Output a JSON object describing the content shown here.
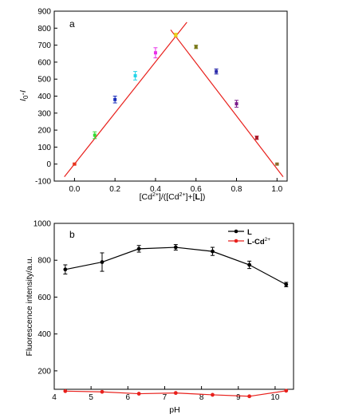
{
  "chart_data": [
    {
      "panel_label": "a",
      "type": "scatter",
      "xlabel": {
        "p1": "[Cd",
        "sup1": "2+",
        "p2": "]/([Cd",
        "sup2": "2+",
        "p3": "]+[",
        "bold": "L",
        "p4": "])"
      },
      "ylabel": {
        "main": "I",
        "sub": "0",
        "rest": "-I"
      },
      "xlim": [
        -0.1,
        1.05
      ],
      "ylim": [
        -100,
        900
      ],
      "xticks": [
        0.0,
        0.2,
        0.4,
        0.6,
        0.8,
        1.0
      ],
      "xtick_labels": [
        "0.0",
        "0.2",
        "0.4",
        "0.6",
        "0.8",
        "1.0"
      ],
      "yticks": [
        -100,
        0,
        100,
        200,
        300,
        400,
        500,
        600,
        700,
        800,
        900
      ],
      "ytick_labels": [
        "-100",
        "0",
        "100",
        "200",
        "300",
        "400",
        "500",
        "600",
        "700",
        "800",
        "900"
      ],
      "points": [
        {
          "x": 0.0,
          "y": 0,
          "err": 5,
          "color": "#e8341c"
        },
        {
          "x": 0.1,
          "y": 170,
          "err": 20,
          "color": "#33dd33"
        },
        {
          "x": 0.2,
          "y": 380,
          "err": 20,
          "color": "#1a2dbb"
        },
        {
          "x": 0.3,
          "y": 520,
          "err": 25,
          "color": "#22d4e8"
        },
        {
          "x": 0.4,
          "y": 655,
          "err": 30,
          "color": "#e82ee8"
        },
        {
          "x": 0.5,
          "y": 760,
          "err": 10,
          "color": "#e8d21a"
        },
        {
          "x": 0.6,
          "y": 690,
          "err": 10,
          "color": "#7a7a1a"
        },
        {
          "x": 0.7,
          "y": 545,
          "err": 15,
          "color": "#2a2aaa"
        },
        {
          "x": 0.8,
          "y": 355,
          "err": 20,
          "color": "#7a1a8a"
        },
        {
          "x": 0.9,
          "y": 155,
          "err": 10,
          "color": "#aa1a2a"
        },
        {
          "x": 1.0,
          "y": 0,
          "err": 5,
          "color": "#8a6a2a"
        }
      ],
      "fit_lines": [
        {
          "x": [
            -0.05,
            0.555
          ],
          "y": [
            -75,
            835
          ],
          "color": "#e8201c"
        },
        {
          "x": [
            0.475,
            1.03
          ],
          "y": [
            790,
            -75
          ],
          "color": "#e8201c"
        }
      ]
    },
    {
      "panel_label": "b",
      "type": "line",
      "xlabel": "pH",
      "ylabel": "Fluorescence intensity/a.u.",
      "xlim": [
        4,
        10.5
      ],
      "ylim": [
        100,
        1000
      ],
      "xticks": [
        4,
        5,
        6,
        7,
        8,
        9,
        10
      ],
      "xtick_labels": [
        "4",
        "5",
        "6",
        "7",
        "8",
        "9",
        "10"
      ],
      "yticks": [
        200,
        400,
        600,
        800,
        1000
      ],
      "ytick_labels": [
        "200",
        "400",
        "600",
        "800",
        "1000"
      ],
      "x": [
        4.3,
        5.3,
        6.3,
        7.3,
        8.3,
        9.3,
        10.3
      ],
      "series": [
        {
          "name": "L",
          "color": "#000000",
          "values": [
            750,
            790,
            862,
            870,
            848,
            775,
            668
          ],
          "errors": [
            25,
            50,
            18,
            15,
            22,
            20,
            12
          ]
        },
        {
          "name": "L-Cd2+",
          "legend": {
            "main": "L",
            "rest": "-Cd",
            "sup": "2+"
          },
          "color": "#e8201c",
          "values": [
            90,
            86,
            76,
            80,
            70,
            62,
            92
          ],
          "errors": [
            0,
            0,
            0,
            0,
            0,
            0,
            0
          ]
        }
      ],
      "legend_position": "top-right"
    }
  ]
}
